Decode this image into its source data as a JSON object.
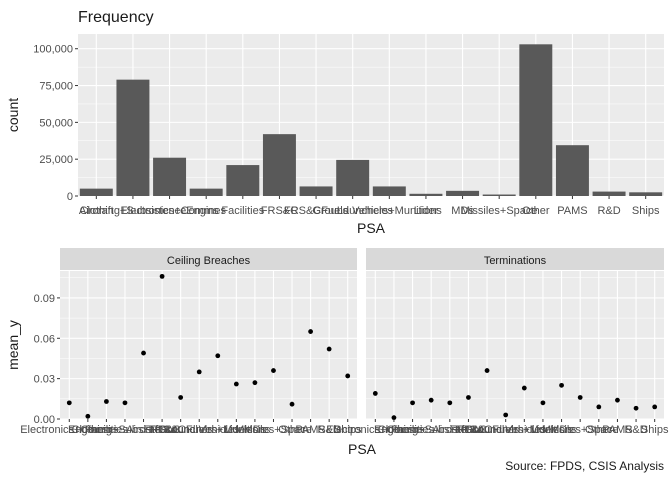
{
  "colors": {
    "panel_bg": "#ebebeb",
    "grid_major": "#ffffff",
    "bar_fill": "#595959",
    "point": "#000000",
    "strip_bg": "#d9d9d9",
    "text": "#1a1a1a",
    "tick_text": "#4d4d4d"
  },
  "caption": "Source: FPDS, CSIS Analysis",
  "chart_data": [
    {
      "type": "bar",
      "title": "Frequency",
      "xlabel": "PSA",
      "ylabel": "count",
      "ylim": [
        0,
        110000
      ],
      "yticks": [
        0,
        25000,
        50000,
        75000,
        100000
      ],
      "ytick_labels": [
        "0",
        "25,000",
        "50,000",
        "75,000",
        "100,000"
      ],
      "categories": [
        "Aircraft",
        "Clothing+Subsistence",
        "Electronics+Comms",
        "Engines",
        "Facilities",
        "FRS&C",
        "FRS&CFuels",
        "Ground Vehicles",
        "Launchers+Munitions",
        "Lider",
        "MDs",
        "Missiles+Space",
        "Other",
        "PAMS",
        "R&D",
        "Ships"
      ],
      "x_labels": [
        "Aircraft",
        "Clothing+Subsistence",
        "Electronics+Comms",
        "Engines",
        "Facilities",
        "FRS&C",
        "FRS&CFuels",
        "Ground Vehicles",
        "Launchers+Munitions",
        "Lider",
        "MDs",
        "Missiles+Space",
        "Other",
        "PAMS",
        "R&D",
        "Ships"
      ],
      "values": [
        5000,
        79000,
        26000,
        5000,
        21000,
        42000,
        6500,
        24500,
        6500,
        1500,
        3500,
        1000,
        103000,
        34500,
        3000,
        2500
      ],
      "grid": true
    },
    {
      "type": "scatter",
      "xlabel": "PSA",
      "ylabel": "mean_y",
      "ylim": [
        0,
        0.11
      ],
      "yticks": [
        0.0,
        0.03,
        0.06,
        0.09
      ],
      "ytick_labels": [
        "0.00",
        "0.03",
        "0.06",
        "0.09"
      ],
      "categories": [
        "Aircraft",
        "Clothing+Subsistence",
        "Electronics+Comms",
        "Engines",
        "Facilities",
        "FRS&C",
        "FRS&CFuels",
        "Ground Vehicles",
        "Launchers+Munitions",
        "Lider",
        "MDs",
        "Missiles+Space",
        "Other",
        "PAMS",
        "R&D",
        "Ships"
      ],
      "grid": true,
      "facets": [
        {
          "name": "Ceiling Breaches",
          "x_labels": [
            "Electronics+Comms",
            "Engines",
            "Facilities",
            "Clothing+Subsistence",
            "Aircraft",
            "FRS&C",
            "FRS&CFuels",
            "Ground Vehicles",
            "Launchers+Munitions",
            "Lider",
            "MDs",
            "Missiles+Space",
            "Other",
            "PAMS",
            "R&D",
            "Ships"
          ],
          "values": [
            0.012,
            0.002,
            0.013,
            0.012,
            0.049,
            0.106,
            0.016,
            0.035,
            0.047,
            0.026,
            0.027,
            0.036,
            0.011,
            0.065,
            0.052,
            0.032
          ]
        },
        {
          "name": "Terminations",
          "x_labels": [
            "Electronics+Comms",
            "Engines",
            "Facilities",
            "Clothing+Subsistence",
            "Aircraft",
            "FRS&C",
            "FRS&CFuels",
            "Ground Vehicles",
            "Launchers+Munitions",
            "Lider",
            "MDs",
            "Missiles+Space",
            "Other",
            "PAMS",
            "R&D",
            "Ships"
          ],
          "values": [
            0.019,
            0.001,
            0.012,
            0.014,
            0.012,
            0.016,
            0.036,
            0.003,
            0.023,
            0.012,
            0.025,
            0.016,
            0.009,
            0.014,
            0.008,
            0.009
          ]
        }
      ]
    }
  ]
}
